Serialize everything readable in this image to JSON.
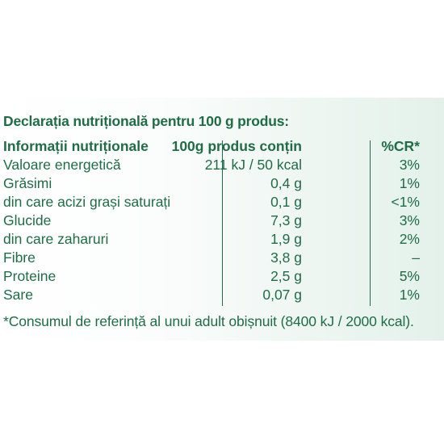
{
  "title": "Declarația nutrițională pentru 100 g produs:",
  "header": {
    "col1": "Informații nutriționale",
    "col2": "100g produs conțin",
    "col3": "%CR*"
  },
  "rows": [
    {
      "name": "Valoare energetică",
      "value": "211 kJ / 50 kcal",
      "cr": "3%"
    },
    {
      "name": "Grăsimi",
      "value": "0,4 g",
      "cr": "1%"
    },
    {
      "name": "din care acizi grași saturați",
      "value": "0,1 g",
      "cr": "<1%"
    },
    {
      "name": "Glucide",
      "value": "7,3 g",
      "cr": "3%"
    },
    {
      "name": "din care zaharuri",
      "value": "1,9 g",
      "cr": "2%"
    },
    {
      "name": "Fibre",
      "value": "3,8 g",
      "cr": "–"
    },
    {
      "name": "Proteine",
      "value": "2,5 g",
      "cr": "5%"
    },
    {
      "name": "Sare",
      "value": "0,07 g",
      "cr": "1%"
    }
  ],
  "footnote": "*Consumul de referință al unui adult obișnuit (8400 kJ / 2000 kcal).",
  "colors": {
    "text": "#1f6c47",
    "panel_tint": "#e3f1ea"
  }
}
